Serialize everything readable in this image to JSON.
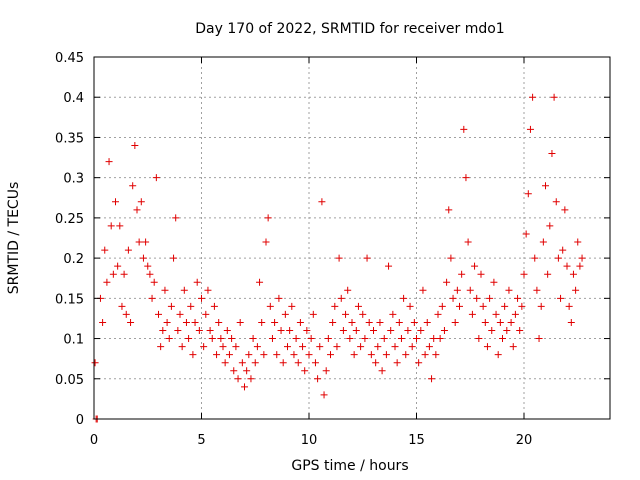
{
  "chart_data": {
    "type": "scatter",
    "title": "Day 170 of 2022, SRMTID for receiver mdo1",
    "xlabel": "GPS time / hours",
    "ylabel": "SRMTID / TECUs",
    "xlim": [
      0,
      24
    ],
    "ylim": [
      0,
      0.45
    ],
    "xticks": [
      0,
      5,
      10,
      15,
      20
    ],
    "xtick_labels": [
      "0",
      "5",
      "10",
      "15",
      "20"
    ],
    "yticks": [
      0,
      0.05,
      0.1,
      0.15,
      0.2,
      0.25,
      0.3,
      0.35,
      0.4,
      0.45
    ],
    "ytick_labels": [
      "0",
      "0.05",
      "0.1",
      "0.15",
      "0.2",
      "0.25",
      "0.3",
      "0.35",
      "0.4",
      "0.45"
    ],
    "grid": true,
    "marker": "+",
    "color": "#e00000",
    "series": [
      {
        "name": "mdo1",
        "points": [
          [
            0.05,
            0.07
          ],
          [
            0.1,
            0.0
          ],
          [
            0.15,
            0.0
          ],
          [
            0.3,
            0.15
          ],
          [
            0.4,
            0.12
          ],
          [
            0.5,
            0.21
          ],
          [
            0.6,
            0.17
          ],
          [
            0.7,
            0.32
          ],
          [
            0.8,
            0.24
          ],
          [
            0.9,
            0.18
          ],
          [
            1.0,
            0.27
          ],
          [
            1.1,
            0.19
          ],
          [
            1.2,
            0.24
          ],
          [
            1.3,
            0.14
          ],
          [
            1.4,
            0.18
          ],
          [
            1.5,
            0.13
          ],
          [
            1.6,
            0.21
          ],
          [
            1.7,
            0.12
          ],
          [
            1.8,
            0.29
          ],
          [
            1.9,
            0.34
          ],
          [
            2.0,
            0.26
          ],
          [
            2.1,
            0.22
          ],
          [
            2.2,
            0.27
          ],
          [
            2.3,
            0.2
          ],
          [
            2.4,
            0.22
          ],
          [
            2.5,
            0.19
          ],
          [
            2.6,
            0.18
          ],
          [
            2.7,
            0.15
          ],
          [
            2.8,
            0.17
          ],
          [
            2.9,
            0.3
          ],
          [
            3.0,
            0.13
          ],
          [
            3.1,
            0.09
          ],
          [
            3.2,
            0.11
          ],
          [
            3.3,
            0.16
          ],
          [
            3.4,
            0.12
          ],
          [
            3.5,
            0.1
          ],
          [
            3.6,
            0.14
          ],
          [
            3.7,
            0.2
          ],
          [
            3.8,
            0.25
          ],
          [
            3.9,
            0.11
          ],
          [
            4.0,
            0.13
          ],
          [
            4.1,
            0.09
          ],
          [
            4.2,
            0.16
          ],
          [
            4.3,
            0.12
          ],
          [
            4.4,
            0.1
          ],
          [
            4.5,
            0.14
          ],
          [
            4.6,
            0.08
          ],
          [
            4.7,
            0.12
          ],
          [
            4.8,
            0.17
          ],
          [
            4.9,
            0.11
          ],
          [
            5.0,
            0.15
          ],
          [
            5.1,
            0.09
          ],
          [
            5.2,
            0.13
          ],
          [
            5.3,
            0.16
          ],
          [
            5.4,
            0.11
          ],
          [
            5.5,
            0.1
          ],
          [
            5.6,
            0.14
          ],
          [
            5.7,
            0.08
          ],
          [
            5.8,
            0.12
          ],
          [
            5.9,
            0.1
          ],
          [
            6.0,
            0.09
          ],
          [
            6.1,
            0.07
          ],
          [
            6.2,
            0.11
          ],
          [
            6.3,
            0.08
          ],
          [
            6.4,
            0.1
          ],
          [
            6.5,
            0.06
          ],
          [
            6.6,
            0.09
          ],
          [
            6.7,
            0.05
          ],
          [
            6.8,
            0.12
          ],
          [
            6.9,
            0.07
          ],
          [
            7.0,
            0.04
          ],
          [
            7.1,
            0.06
          ],
          [
            7.2,
            0.08
          ],
          [
            7.3,
            0.05
          ],
          [
            7.4,
            0.1
          ],
          [
            7.5,
            0.07
          ],
          [
            7.6,
            0.09
          ],
          [
            7.7,
            0.17
          ],
          [
            7.8,
            0.12
          ],
          [
            7.9,
            0.08
          ],
          [
            8.0,
            0.22
          ],
          [
            8.1,
            0.25
          ],
          [
            8.2,
            0.14
          ],
          [
            8.3,
            0.1
          ],
          [
            8.4,
            0.12
          ],
          [
            8.5,
            0.08
          ],
          [
            8.6,
            0.15
          ],
          [
            8.7,
            0.11
          ],
          [
            8.8,
            0.07
          ],
          [
            8.9,
            0.13
          ],
          [
            9.0,
            0.09
          ],
          [
            9.1,
            0.11
          ],
          [
            9.2,
            0.14
          ],
          [
            9.3,
            0.08
          ],
          [
            9.4,
            0.1
          ],
          [
            9.5,
            0.07
          ],
          [
            9.6,
            0.12
          ],
          [
            9.7,
            0.09
          ],
          [
            9.8,
            0.06
          ],
          [
            9.9,
            0.11
          ],
          [
            10.0,
            0.08
          ],
          [
            10.1,
            0.1
          ],
          [
            10.2,
            0.13
          ],
          [
            10.3,
            0.07
          ],
          [
            10.4,
            0.05
          ],
          [
            10.5,
            0.09
          ],
          [
            10.6,
            0.27
          ],
          [
            10.7,
            0.03
          ],
          [
            10.8,
            0.06
          ],
          [
            10.9,
            0.1
          ],
          [
            11.0,
            0.08
          ],
          [
            11.1,
            0.12
          ],
          [
            11.2,
            0.14
          ],
          [
            11.3,
            0.09
          ],
          [
            11.4,
            0.2
          ],
          [
            11.5,
            0.15
          ],
          [
            11.6,
            0.11
          ],
          [
            11.7,
            0.13
          ],
          [
            11.8,
            0.16
          ],
          [
            11.9,
            0.1
          ],
          [
            12.0,
            0.12
          ],
          [
            12.1,
            0.08
          ],
          [
            12.2,
            0.11
          ],
          [
            12.3,
            0.14
          ],
          [
            12.4,
            0.09
          ],
          [
            12.5,
            0.13
          ],
          [
            12.6,
            0.1
          ],
          [
            12.7,
            0.2
          ],
          [
            12.8,
            0.12
          ],
          [
            12.9,
            0.08
          ],
          [
            13.0,
            0.11
          ],
          [
            13.1,
            0.07
          ],
          [
            13.2,
            0.09
          ],
          [
            13.3,
            0.12
          ],
          [
            13.4,
            0.06
          ],
          [
            13.5,
            0.1
          ],
          [
            13.6,
            0.08
          ],
          [
            13.7,
            0.19
          ],
          [
            13.8,
            0.11
          ],
          [
            13.9,
            0.13
          ],
          [
            14.0,
            0.09
          ],
          [
            14.1,
            0.07
          ],
          [
            14.2,
            0.12
          ],
          [
            14.3,
            0.1
          ],
          [
            14.4,
            0.15
          ],
          [
            14.5,
            0.08
          ],
          [
            14.6,
            0.11
          ],
          [
            14.7,
            0.14
          ],
          [
            14.8,
            0.09
          ],
          [
            14.9,
            0.12
          ],
          [
            15.0,
            0.1
          ],
          [
            15.1,
            0.07
          ],
          [
            15.2,
            0.11
          ],
          [
            15.3,
            0.16
          ],
          [
            15.4,
            0.08
          ],
          [
            15.5,
            0.12
          ],
          [
            15.6,
            0.09
          ],
          [
            15.7,
            0.05
          ],
          [
            15.8,
            0.1
          ],
          [
            15.9,
            0.08
          ],
          [
            16.0,
            0.13
          ],
          [
            16.1,
            0.1
          ],
          [
            16.2,
            0.14
          ],
          [
            16.3,
            0.11
          ],
          [
            16.4,
            0.17
          ],
          [
            16.5,
            0.26
          ],
          [
            16.6,
            0.2
          ],
          [
            16.7,
            0.15
          ],
          [
            16.8,
            0.12
          ],
          [
            16.9,
            0.16
          ],
          [
            17.0,
            0.14
          ],
          [
            17.1,
            0.18
          ],
          [
            17.2,
            0.36
          ],
          [
            17.3,
            0.3
          ],
          [
            17.4,
            0.22
          ],
          [
            17.5,
            0.16
          ],
          [
            17.6,
            0.13
          ],
          [
            17.7,
            0.19
          ],
          [
            17.8,
            0.15
          ],
          [
            17.9,
            0.1
          ],
          [
            18.0,
            0.18
          ],
          [
            18.1,
            0.14
          ],
          [
            18.2,
            0.12
          ],
          [
            18.3,
            0.09
          ],
          [
            18.4,
            0.15
          ],
          [
            18.5,
            0.11
          ],
          [
            18.6,
            0.17
          ],
          [
            18.7,
            0.13
          ],
          [
            18.8,
            0.08
          ],
          [
            18.9,
            0.12
          ],
          [
            19.0,
            0.1
          ],
          [
            19.1,
            0.14
          ],
          [
            19.2,
            0.11
          ],
          [
            19.3,
            0.16
          ],
          [
            19.4,
            0.12
          ],
          [
            19.5,
            0.09
          ],
          [
            19.6,
            0.13
          ],
          [
            19.7,
            0.15
          ],
          [
            19.8,
            0.11
          ],
          [
            19.9,
            0.14
          ],
          [
            20.0,
            0.18
          ],
          [
            20.1,
            0.23
          ],
          [
            20.2,
            0.28
          ],
          [
            20.3,
            0.36
          ],
          [
            20.4,
            0.4
          ],
          [
            20.5,
            0.2
          ],
          [
            20.6,
            0.16
          ],
          [
            20.7,
            0.1
          ],
          [
            20.8,
            0.14
          ],
          [
            20.9,
            0.22
          ],
          [
            21.0,
            0.29
          ],
          [
            21.1,
            0.18
          ],
          [
            21.2,
            0.24
          ],
          [
            21.3,
            0.33
          ],
          [
            21.4,
            0.4
          ],
          [
            21.5,
            0.27
          ],
          [
            21.6,
            0.2
          ],
          [
            21.7,
            0.15
          ],
          [
            21.8,
            0.21
          ],
          [
            21.9,
            0.26
          ],
          [
            22.0,
            0.19
          ],
          [
            22.1,
            0.14
          ],
          [
            22.2,
            0.12
          ],
          [
            22.3,
            0.18
          ],
          [
            22.4,
            0.16
          ],
          [
            22.5,
            0.22
          ],
          [
            22.6,
            0.19
          ],
          [
            22.7,
            0.2
          ]
        ]
      }
    ]
  }
}
